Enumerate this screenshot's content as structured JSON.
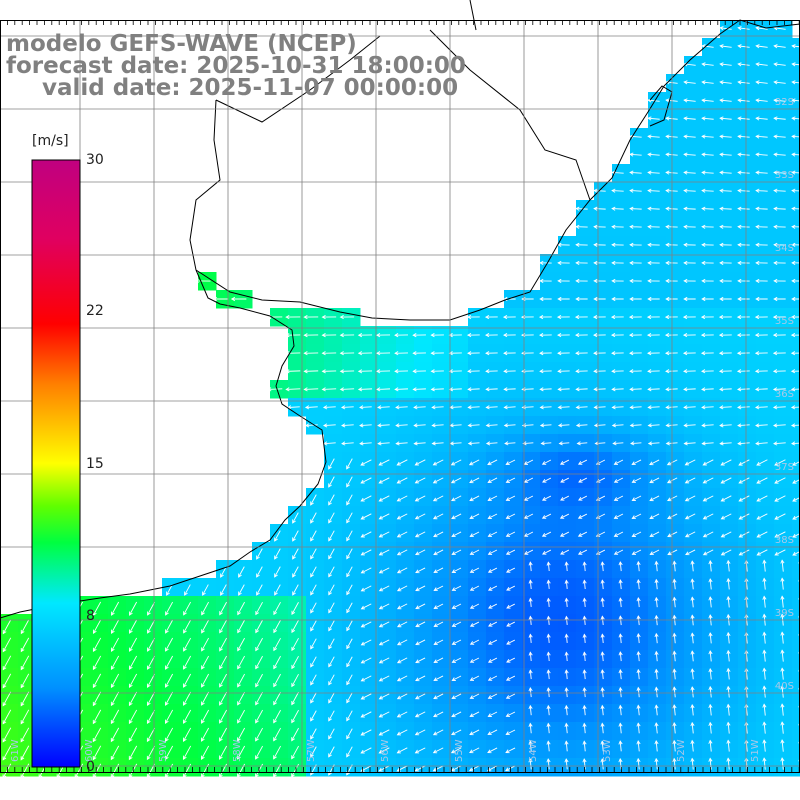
{
  "header": {
    "line1": "modelo GEFS-WAVE (NCEP)",
    "line2": "forecast date: 2025-10-31 18:00:00",
    "line3": "valid date: 2025-11-07 00:00:00"
  },
  "colorbar": {
    "unit": "[m/s]",
    "ticks": [
      "30",
      "22",
      "15",
      "8",
      "0"
    ],
    "min": 0,
    "max": 30,
    "colors": [
      "#0000ff",
      "#0090ff",
      "#00e8ff",
      "#00ff40",
      "#60ff00",
      "#ffff00",
      "#ff8000",
      "#ff0000",
      "#e00060",
      "#c00080"
    ]
  },
  "map": {
    "land_color": "#ffffff",
    "coast_color": "#000000",
    "grid_color": "#808080",
    "arrow_color": "#ffffff",
    "grid_on": true,
    "right_lat_labels": [
      "32S",
      "33S",
      "34S",
      "35S",
      "36S",
      "37S",
      "38S",
      "39S",
      "40S"
    ],
    "bottom_lon_labels": [
      "61W",
      "60W",
      "59W",
      "58W",
      "57W",
      "56W",
      "55W",
      "54W",
      "53W",
      "52W",
      "51W"
    ]
  }
}
